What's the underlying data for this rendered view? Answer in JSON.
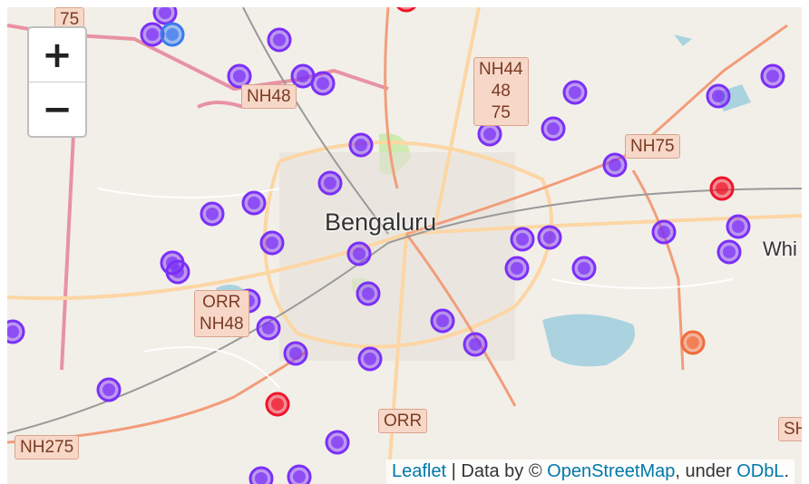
{
  "map": {
    "city_label": "Bengaluru",
    "partial_label": "Whi",
    "partial_shield": "SH",
    "road_shields": [
      {
        "text": "75"
      },
      {
        "text": "NH48"
      },
      {
        "text": "NH44\n48\n75"
      },
      {
        "text": "NH75"
      },
      {
        "text": "ORR\nNH48"
      },
      {
        "text": "ORR"
      },
      {
        "text": "NH275"
      }
    ]
  },
  "zoom": {
    "in_label": "+",
    "out_label": "−"
  },
  "attribution": {
    "leaflet": "Leaflet",
    "sep": " | Data by © ",
    "osm": "OpenStreetMap",
    "under": ", under ",
    "odbl": "ODbL",
    "end": "."
  },
  "markers": {
    "colors": {
      "purple": "#7b2ff7",
      "blue": "#3a7bef",
      "red": "#f0142a",
      "orange": "#f26b3a"
    }
  }
}
